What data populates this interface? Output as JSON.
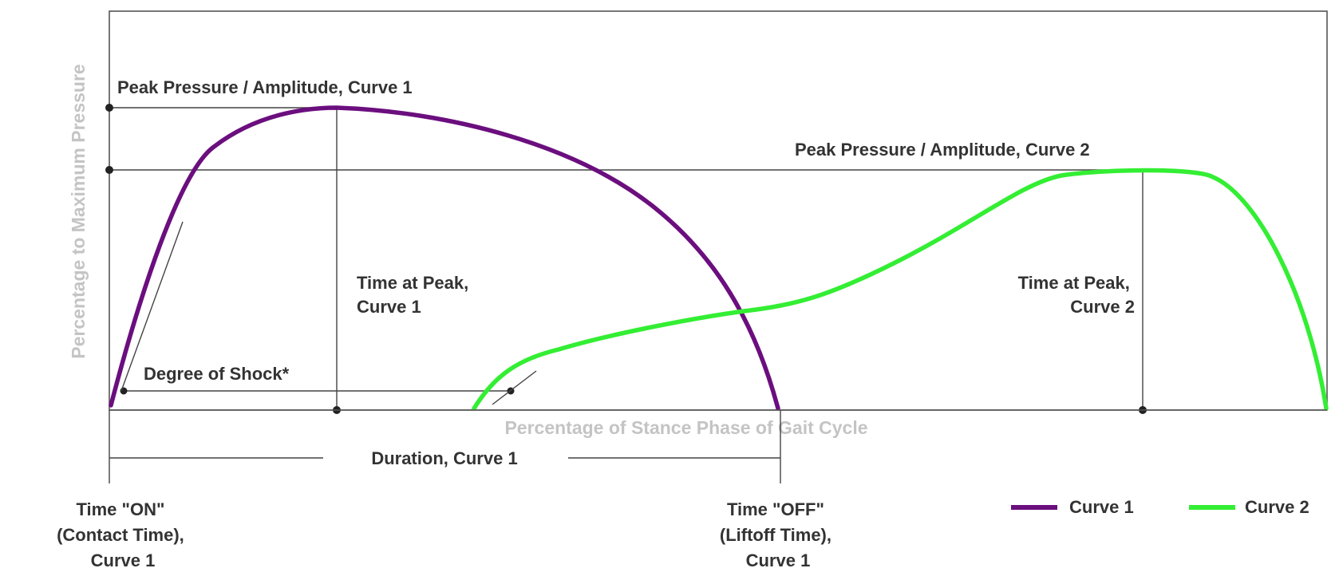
{
  "y_axis_title": "Percentage to Maximum Pressure",
  "x_axis_title": "Percentage of Stance Phase of Gait Cycle",
  "annotations": {
    "peak_curve1": "Peak Pressure / Amplitude, Curve 1",
    "peak_curve2": "Peak Pressure / Amplitude, Curve 2",
    "time_at_peak_1": [
      "Time at Peak,",
      "Curve 1"
    ],
    "time_at_peak_2": [
      "Time at Peak,",
      "Curve 2"
    ],
    "degree_of_shock": "Degree of Shock*",
    "duration": "Duration, Curve 1",
    "time_on": [
      "Time \"ON\"",
      "(Contact Time),",
      "Curve 1"
    ],
    "time_off": [
      "Time \"OFF\"",
      "(Liftoff Time),",
      "Curve 1"
    ]
  },
  "legend": [
    {
      "label": "Curve 1",
      "color": "#6b0e7e"
    },
    {
      "label": "Curve 2",
      "color": "#33ee33"
    }
  ],
  "colors": {
    "curve1": "#6b0e7e",
    "curve2": "#33ee33"
  }
}
